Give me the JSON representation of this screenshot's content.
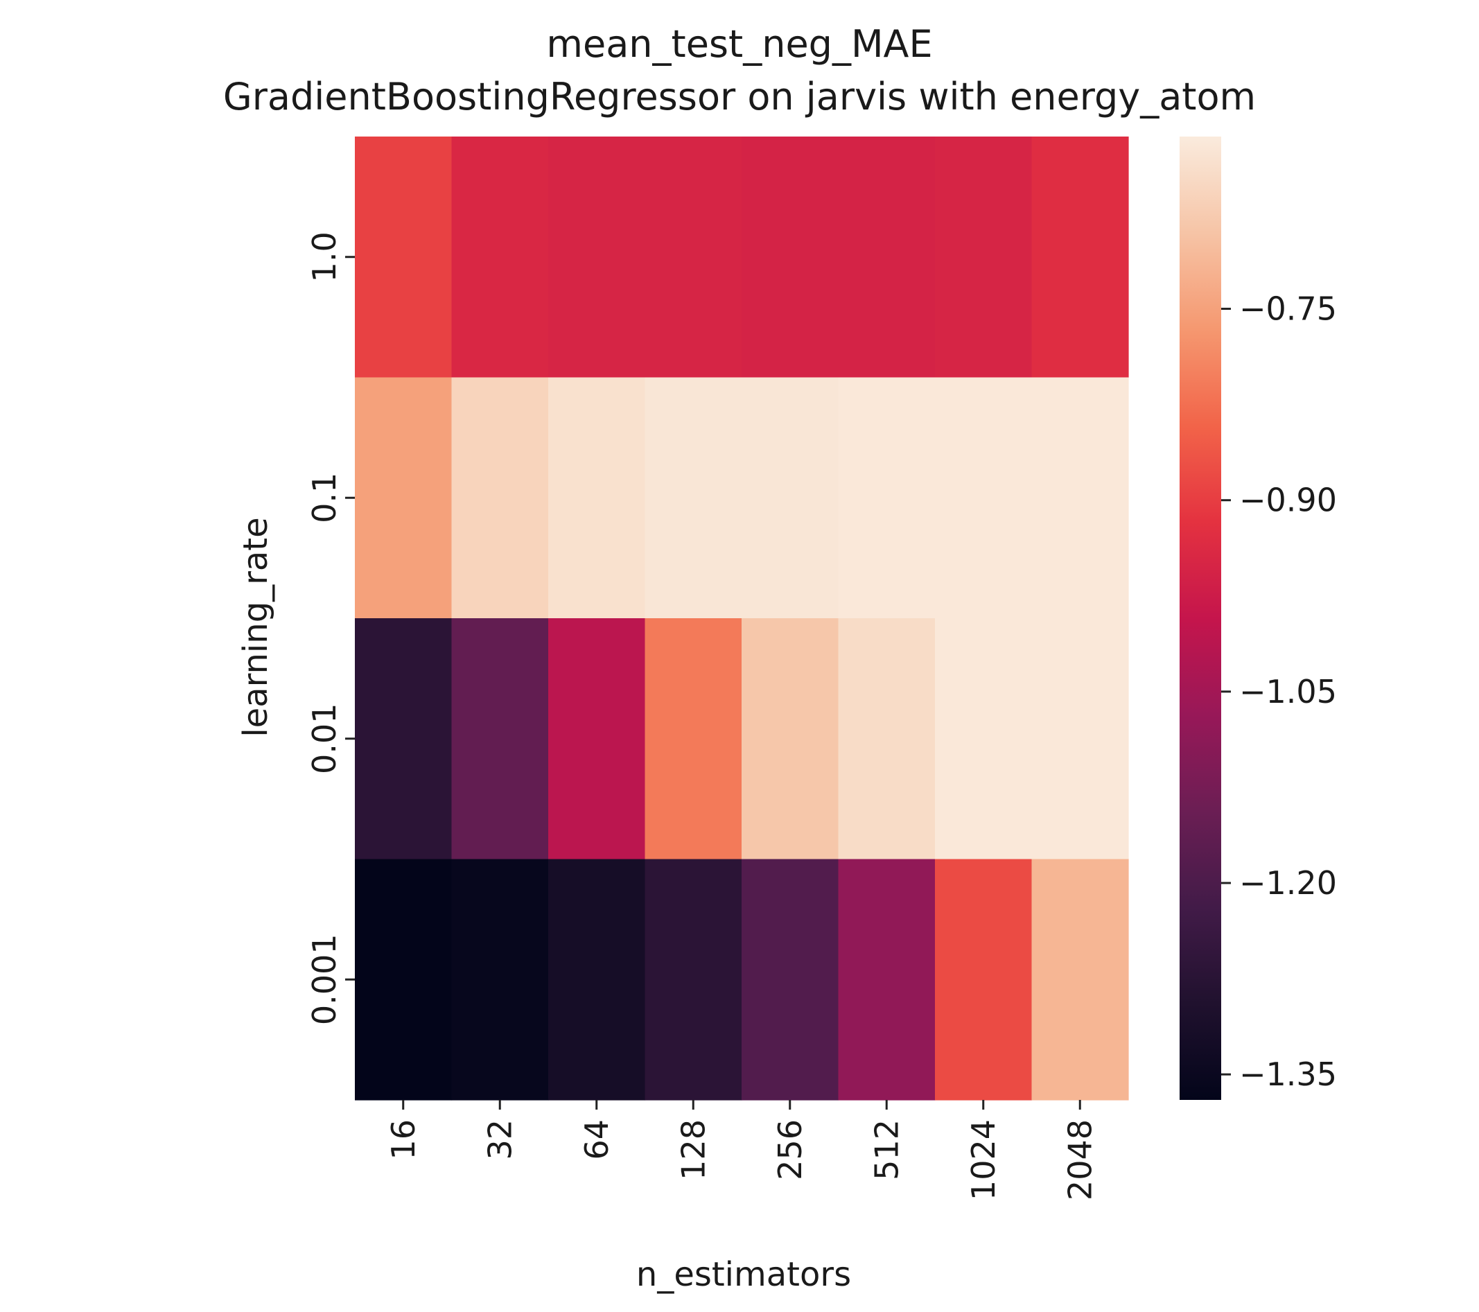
{
  "chart_data": {
    "type": "heatmap",
    "title": "mean_test_neg_MAE",
    "subtitle": "GradientBoostingRegressor on jarvis with energy_atom",
    "xlabel": "n_estimators",
    "ylabel": "learning_rate",
    "x_categories": [
      "16",
      "32",
      "64",
      "128",
      "256",
      "512",
      "1024",
      "2048"
    ],
    "y_categories": [
      "1.0",
      "0.1",
      "0.01",
      "0.001"
    ],
    "values": [
      [
        -0.895,
        -0.945,
        -0.95,
        -0.95,
        -0.955,
        -0.955,
        -0.95,
        -0.93
      ],
      [
        -0.75,
        -0.66,
        -0.635,
        -0.625,
        -0.625,
        -0.62,
        -0.62,
        -0.62
      ],
      [
        -1.27,
        -1.16,
        -1.01,
        -0.81,
        -0.685,
        -0.645,
        -0.62,
        -0.62
      ],
      [
        -1.37,
        -1.36,
        -1.32,
        -1.27,
        -1.19,
        -1.08,
        -0.88,
        -0.715
      ]
    ],
    "colorbar": {
      "min": -1.37,
      "max": -0.615,
      "ticks": [
        -0.75,
        -0.9,
        -1.05,
        -1.2,
        -1.35
      ],
      "tick_labels": [
        "−0.75",
        "−0.90",
        "−1.05",
        "−1.20",
        "−1.35"
      ],
      "colormap": "rocket"
    }
  }
}
